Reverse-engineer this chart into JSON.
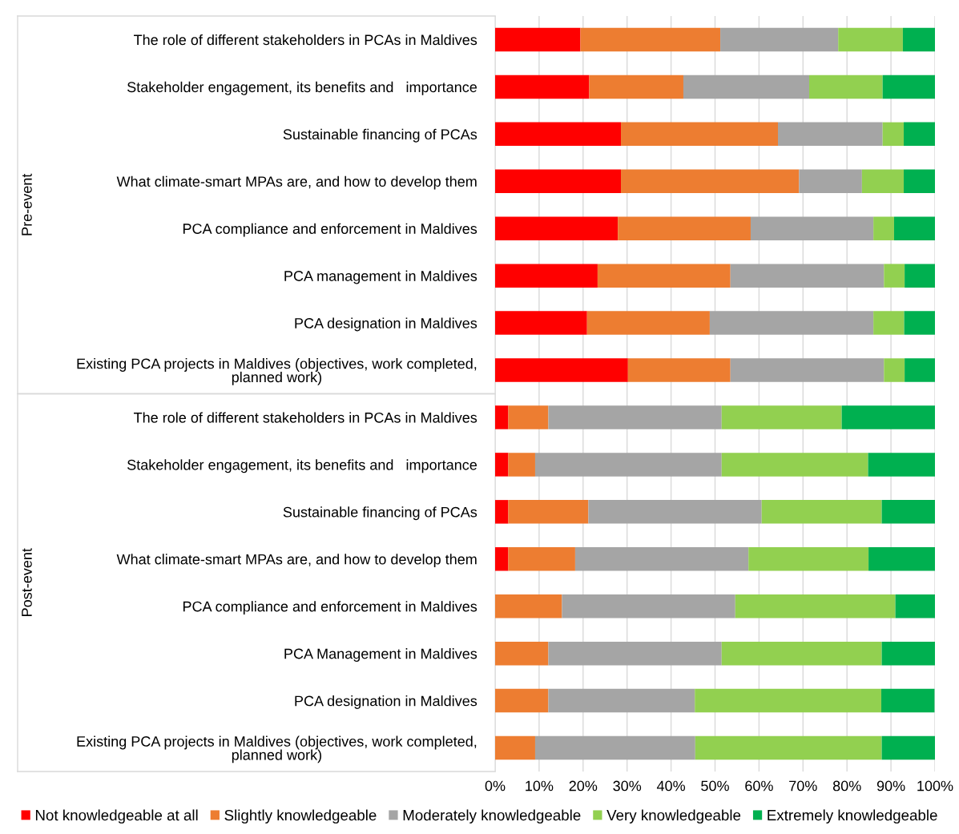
{
  "chart_data": {
    "type": "bar",
    "orientation": "horizontal",
    "stacked": true,
    "categories": [
      "The role of different stakeholders in PCAs in Maldives",
      "Stakeholder engagement, its benefits and   importance",
      "Sustainable financing of PCAs",
      "What climate-smart MPAs are, and how to develop them",
      "PCA compliance and enforcement in Maldives",
      "PCA management in Maldives",
      "PCA designation in Maldives",
      "Existing PCA projects in Maldives (objectives, work completed, planned work)",
      "The role of different stakeholders in PCAs in Maldives",
      "Stakeholder engagement, its benefits and   importance",
      "Sustainable financing of PCAs",
      "What climate-smart MPAs are, and how to develop them",
      "PCA compliance and enforcement in Maldives",
      "PCA Management in Maldives",
      "PCA designation in Maldives",
      "Existing PCA projects in Maldives (objectives, work completed, planned work)"
    ],
    "series": [
      {
        "name": "Not knowledgeable at all",
        "color": "#ff0000",
        "values": [
          19.4,
          21.4,
          28.6,
          28.6,
          27.9,
          23.3,
          20.9,
          30.2,
          3.0,
          3.0,
          3.0,
          3.0,
          0,
          0,
          0,
          0
        ]
      },
      {
        "name": "Slightly knowledgeable",
        "color": "#ed7d31",
        "values": [
          31.8,
          21.4,
          35.7,
          40.5,
          30.2,
          30.2,
          27.9,
          23.3,
          9.1,
          6.1,
          18.2,
          15.2,
          15.2,
          12.1,
          12.1,
          9.1
        ]
      },
      {
        "name": "Moderately knowledgeable",
        "color": "#a5a5a5",
        "values": [
          26.8,
          28.6,
          23.8,
          14.3,
          27.9,
          34.9,
          37.2,
          34.9,
          39.4,
          42.4,
          39.4,
          39.4,
          39.4,
          39.4,
          33.3,
          36.4
        ]
      },
      {
        "name": "Very knowledgeable",
        "color": "#92d050",
        "values": [
          14.7,
          16.7,
          4.8,
          9.5,
          4.7,
          4.7,
          7.0,
          4.7,
          27.3,
          33.3,
          27.3,
          27.3,
          36.4,
          36.4,
          42.4,
          42.4
        ]
      },
      {
        "name": "Extremely knowledgeable",
        "color": "#00b050",
        "values": [
          7.3,
          11.9,
          7.1,
          7.1,
          9.3,
          7.0,
          7.0,
          7.0,
          21.2,
          15.2,
          12.1,
          15.2,
          9.1,
          12.1,
          12.1,
          12.1
        ]
      }
    ],
    "xlim": [
      0,
      100
    ],
    "xticks": [
      {
        "value": 0,
        "label": "0%"
      },
      {
        "value": 10,
        "label": "10%"
      },
      {
        "value": 20,
        "label": "20%"
      },
      {
        "value": 30,
        "label": "30%"
      },
      {
        "value": 40,
        "label": "40%"
      },
      {
        "value": 50,
        "label": "50%"
      },
      {
        "value": 60,
        "label": "60%"
      },
      {
        "value": 70,
        "label": "70%"
      },
      {
        "value": 80,
        "label": "80%"
      },
      {
        "value": 90,
        "label": "90%"
      },
      {
        "value": 100,
        "label": "100%"
      }
    ],
    "annotations": [
      "Pre-event",
      "Post-event"
    ],
    "grid": "x",
    "legend": "bottom"
  }
}
